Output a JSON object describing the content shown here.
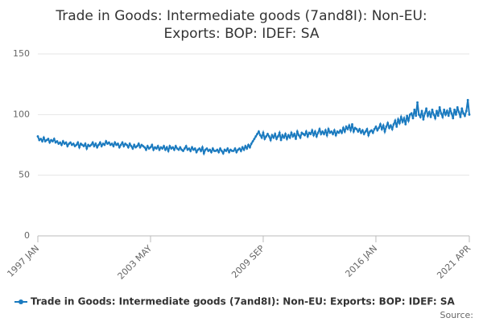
{
  "chart_data": {
    "type": "line",
    "title": [
      "Trade in Goods: Intermediate goods (7and8I): Non-EU:",
      "Exports: BOP: IDEF: SA"
    ],
    "categories": [
      "1997 JAN",
      null,
      null,
      null,
      null,
      null,
      null,
      null,
      null,
      null,
      null,
      null,
      null,
      null,
      null,
      null,
      null,
      null,
      null,
      null,
      null,
      null,
      null,
      null,
      null,
      null,
      null,
      null,
      null,
      null,
      null,
      null,
      null,
      null,
      null,
      null,
      null,
      null,
      null,
      null,
      null,
      null,
      null,
      null,
      null,
      null,
      null,
      null,
      null,
      null,
      null,
      null,
      null,
      null,
      null,
      null,
      null,
      null,
      null,
      null,
      null,
      null,
      null,
      null,
      null,
      null,
      null,
      null,
      null,
      null,
      null,
      null,
      null,
      null,
      null,
      null,
      "2003 MAY",
      null,
      null,
      null,
      null,
      null,
      null,
      null,
      null,
      null,
      null,
      null,
      null,
      null,
      null,
      null,
      null,
      null,
      null,
      null,
      null,
      null,
      null,
      null,
      null,
      null,
      null,
      null,
      null,
      null,
      null,
      null,
      null,
      null,
      null,
      null,
      null,
      null,
      null,
      null,
      null,
      null,
      null,
      null,
      null,
      null,
      null,
      null,
      null,
      null,
      null,
      null,
      null,
      null,
      null,
      null,
      null,
      null,
      null,
      null,
      null,
      null,
      null,
      null,
      null,
      null,
      null,
      null,
      null,
      null,
      null,
      null,
      null,
      null,
      null,
      null,
      "2009 SEP",
      null,
      null,
      null,
      null,
      null,
      null,
      null,
      null,
      null,
      null,
      null,
      null,
      null,
      null,
      null,
      null,
      null,
      null,
      null,
      null,
      null,
      null,
      null,
      null,
      null,
      null,
      null,
      null,
      null,
      null,
      null,
      null,
      null,
      null,
      null,
      null,
      null,
      null,
      null,
      null,
      null,
      null,
      null,
      null,
      null,
      null,
      null,
      null,
      null,
      null,
      null,
      null,
      null,
      null,
      null,
      null,
      null,
      null,
      null,
      null,
      null,
      null,
      null,
      null,
      null,
      null,
      null,
      null,
      null,
      null,
      null,
      null,
      null,
      null,
      null,
      "2016 JAN",
      null,
      null,
      null,
      null,
      null,
      null,
      null,
      null,
      null,
      null,
      null,
      null,
      null,
      null,
      null,
      null,
      null,
      null,
      null,
      null,
      null,
      null,
      null,
      null,
      null,
      null,
      null,
      null,
      null,
      null,
      null,
      null,
      null,
      null,
      null,
      null,
      null,
      null,
      null,
      null,
      null,
      null,
      null,
      null,
      null,
      null,
      null,
      null,
      null,
      null,
      null,
      null,
      null,
      null,
      null,
      null,
      null,
      null,
      null,
      null,
      null,
      null,
      "2021 APR"
    ],
    "series": [
      {
        "name": "Trade in Goods: Intermediate goods (7and8I): Non-EU: Exports: BOP: IDEF: SA",
        "color": "#1a7abf",
        "values": [
          82,
          79,
          80,
          78,
          81,
          78,
          79,
          80,
          77,
          79,
          78,
          80,
          77,
          78,
          76,
          77,
          75,
          78,
          76,
          77,
          74,
          76,
          77,
          75,
          76,
          74,
          75,
          77,
          73,
          76,
          75,
          74,
          76,
          72,
          75,
          74,
          75,
          77,
          74,
          76,
          73,
          75,
          77,
          74,
          76,
          75,
          78,
          76,
          77,
          75,
          76,
          74,
          77,
          75,
          76,
          73,
          75,
          77,
          74,
          76,
          75,
          73,
          76,
          74,
          72,
          75,
          73,
          74,
          76,
          73,
          75,
          74,
          73,
          71,
          74,
          72,
          73,
          75,
          71,
          73,
          72,
          74,
          71,
          73,
          72,
          74,
          71,
          73,
          70,
          74,
          72,
          73,
          71,
          74,
          72,
          71,
          73,
          71,
          70,
          72,
          74,
          71,
          72,
          70,
          73,
          71,
          72,
          69,
          71,
          72,
          70,
          73,
          68,
          71,
          72,
          70,
          71,
          69,
          72,
          70,
          70,
          71,
          69,
          72,
          70,
          68,
          71,
          70,
          72,
          69,
          71,
          70,
          70,
          72,
          69,
          71,
          72,
          70,
          73,
          71,
          74,
          72,
          75,
          73,
          76,
          78,
          80,
          82,
          84,
          86,
          83,
          81,
          85,
          80,
          82,
          84,
          82,
          79,
          83,
          81,
          84,
          80,
          82,
          85,
          79,
          83,
          81,
          84,
          80,
          83,
          81,
          85,
          82,
          84,
          80,
          86,
          83,
          81,
          85,
          84,
          83,
          86,
          82,
          85,
          84,
          87,
          83,
          86,
          82,
          85,
          88,
          84,
          86,
          84,
          87,
          83,
          88,
          85,
          86,
          84,
          87,
          83,
          86,
          85,
          87,
          85,
          89,
          86,
          90,
          88,
          91,
          87,
          92,
          86,
          89,
          88,
          86,
          88,
          85,
          87,
          84,
          86,
          88,
          83,
          86,
          87,
          85,
          88,
          90,
          87,
          89,
          92,
          88,
          91,
          86,
          90,
          93,
          89,
          91,
          88,
          92,
          95,
          90,
          96,
          93,
          98,
          94,
          97,
          92,
          99,
          95,
          100,
          101,
          97,
          104,
          99,
          110,
          100,
          98,
          103,
          96,
          101,
          105,
          99,
          102,
          98,
          104,
          100,
          97,
          103,
          99,
          106,
          101,
          98,
          104,
          100,
          103,
          99,
          105,
          101,
          97,
          104,
          100,
          106,
          102,
          98,
          105,
          101,
          99,
          103,
          112,
          100
        ]
      }
    ],
    "ylim": [
      0,
      150
    ],
    "yticks": [
      0,
      50,
      100,
      150
    ],
    "grid": true,
    "source_label": "Source:"
  }
}
